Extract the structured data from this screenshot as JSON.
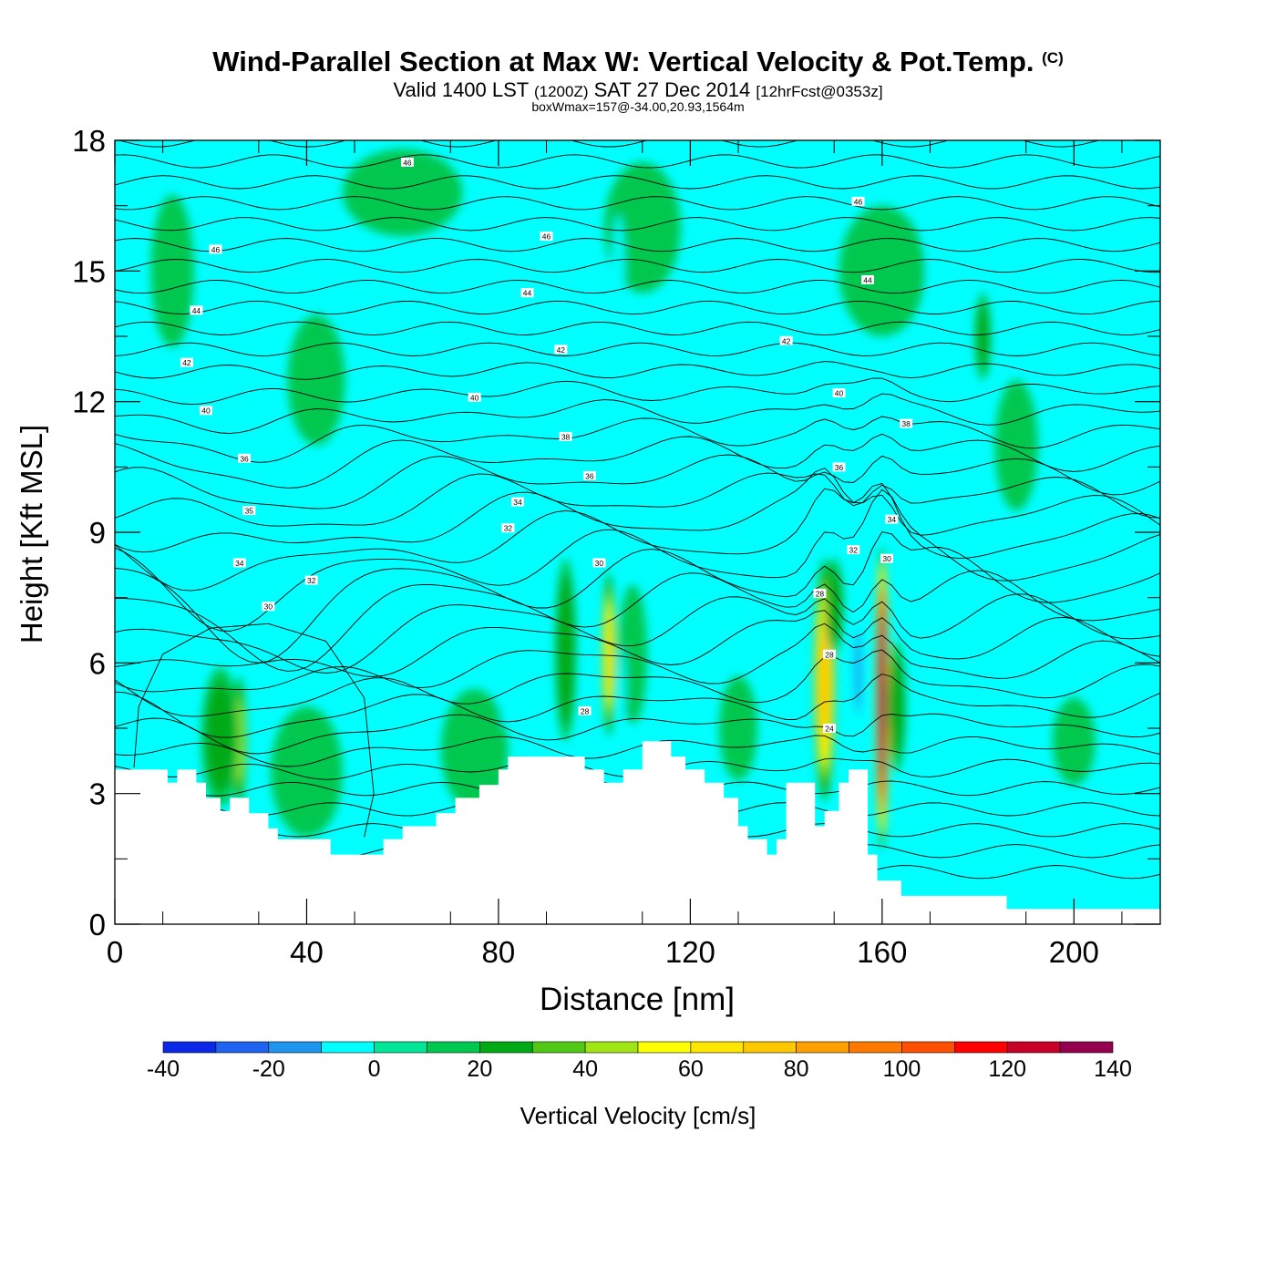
{
  "header": {
    "title": "Wind-Parallel Section at Max W: Vertical Velocity & Pot.Temp.",
    "copyright": "(C)",
    "subtitle_a": "Valid 1400 LST",
    "subtitle_b": "(1200Z)",
    "subtitle_c": "SAT 27 Dec 2014",
    "subtitle_d": "[12hrFcst@0353z]",
    "subtitle2": "boxWmax=157@-34.00,20.93,1564m"
  },
  "chart_data": {
    "type": "heatmap",
    "xlabel": "Distance [nm]",
    "ylabel": "Height [Kft MSL]",
    "xlim": [
      0,
      218
    ],
    "ylim": [
      0,
      18
    ],
    "xticks": [
      "0",
      "40",
      "80",
      "120",
      "160",
      "200"
    ],
    "xtick_values": [
      0,
      40,
      80,
      120,
      160,
      200
    ],
    "yticks": [
      "0",
      "3",
      "6",
      "9",
      "12",
      "15",
      "18"
    ],
    "ytick_values": [
      0,
      3,
      6,
      9,
      12,
      15,
      18
    ],
    "colorbar": {
      "label": "Vertical Velocity [cm/s]",
      "ticks": [
        "-40",
        "-20",
        "0",
        "20",
        "40",
        "60",
        "80",
        "100",
        "120",
        "140"
      ],
      "tick_values": [
        -40,
        -20,
        0,
        20,
        40,
        60,
        80,
        100,
        120,
        140
      ],
      "levels": [
        -40,
        -30,
        -20,
        -10,
        0,
        10,
        20,
        30,
        40,
        50,
        60,
        70,
        80,
        90,
        100,
        110,
        120,
        130,
        140
      ],
      "colors": [
        "#0a28e6",
        "#1e64f0",
        "#1e96f0",
        "#00ffff",
        "#00e696",
        "#00c850",
        "#00aa14",
        "#50c814",
        "#a0e614",
        "#ffff00",
        "#ffe600",
        "#ffc800",
        "#ffa000",
        "#ff7800",
        "#ff5000",
        "#ff0000",
        "#c80028",
        "#960050"
      ]
    },
    "terrain": [
      [
        0,
        3.55
      ],
      [
        11,
        3.55
      ],
      [
        11,
        3.25
      ],
      [
        13,
        3.25
      ],
      [
        13,
        3.55
      ],
      [
        17,
        3.55
      ],
      [
        17,
        3.25
      ],
      [
        19,
        3.25
      ],
      [
        19,
        2.9
      ],
      [
        22,
        2.9
      ],
      [
        22,
        2.6
      ],
      [
        24,
        2.6
      ],
      [
        24,
        2.9
      ],
      [
        28,
        2.9
      ],
      [
        28,
        2.55
      ],
      [
        32,
        2.55
      ],
      [
        32,
        2.2
      ],
      [
        34,
        2.2
      ],
      [
        34,
        1.95
      ],
      [
        45,
        1.95
      ],
      [
        45,
        1.6
      ],
      [
        56,
        1.6
      ],
      [
        56,
        1.95
      ],
      [
        60,
        1.95
      ],
      [
        60,
        2.25
      ],
      [
        67,
        2.25
      ],
      [
        67,
        2.55
      ],
      [
        71,
        2.55
      ],
      [
        71,
        2.9
      ],
      [
        76,
        2.9
      ],
      [
        76,
        3.2
      ],
      [
        80,
        3.2
      ],
      [
        80,
        3.55
      ],
      [
        82,
        3.55
      ],
      [
        82,
        3.85
      ],
      [
        98,
        3.85
      ],
      [
        98,
        3.55
      ],
      [
        102,
        3.55
      ],
      [
        102,
        3.25
      ],
      [
        106,
        3.25
      ],
      [
        106,
        3.55
      ],
      [
        110,
        3.55
      ],
      [
        110,
        4.2
      ],
      [
        116,
        4.2
      ],
      [
        116,
        3.85
      ],
      [
        119,
        3.85
      ],
      [
        119,
        3.55
      ],
      [
        123,
        3.55
      ],
      [
        123,
        3.25
      ],
      [
        127,
        3.25
      ],
      [
        127,
        2.9
      ],
      [
        130,
        2.9
      ],
      [
        130,
        2.25
      ],
      [
        132,
        2.25
      ],
      [
        132,
        1.95
      ],
      [
        136,
        1.95
      ],
      [
        136,
        1.6
      ],
      [
        138,
        1.6
      ],
      [
        138,
        1.95
      ],
      [
        140,
        1.95
      ],
      [
        140,
        3.25
      ],
      [
        146,
        3.25
      ],
      [
        146,
        2.25
      ],
      [
        148,
        2.25
      ],
      [
        148,
        2.6
      ],
      [
        151,
        2.6
      ],
      [
        151,
        3.25
      ],
      [
        153,
        3.25
      ],
      [
        153,
        3.55
      ],
      [
        157,
        3.55
      ],
      [
        157,
        1.6
      ],
      [
        159,
        1.6
      ],
      [
        159,
        1.0
      ],
      [
        164,
        1.0
      ],
      [
        164,
        0.65
      ],
      [
        186,
        0.65
      ],
      [
        186,
        0.35
      ],
      [
        218,
        0.35
      ]
    ],
    "wcells": [
      {
        "x": 160,
        "z": 5.2,
        "w": 2.8,
        "h": 7.0,
        "v": 150
      },
      {
        "x": 148,
        "z": 5.6,
        "w": 4.5,
        "h": 5.6,
        "v": 70
      },
      {
        "x": 103,
        "z": 6.2,
        "w": 2.8,
        "h": 3.8,
        "v": 60
      },
      {
        "x": 94,
        "z": 6.3,
        "w": 4.5,
        "h": 4.2,
        "v": 28
      },
      {
        "x": 26,
        "z": 4.2,
        "w": 3.0,
        "h": 3.0,
        "v": 42
      },
      {
        "x": 22,
        "z": 4.3,
        "w": 8.0,
        "h": 3.2,
        "v": 24
      },
      {
        "x": 150,
        "z": 7.3,
        "w": 4.0,
        "h": 2.2,
        "v": 22
      },
      {
        "x": 163,
        "z": 5.0,
        "w": 4.0,
        "h": 3.0,
        "v": 22
      },
      {
        "x": 108,
        "z": 6.2,
        "w": 6.0,
        "h": 3.2,
        "v": 15
      },
      {
        "x": 130,
        "z": 4.5,
        "w": 8.0,
        "h": 2.4,
        "v": 14
      },
      {
        "x": 40,
        "z": 3.5,
        "w": 15.0,
        "h": 3.0,
        "v": 10
      },
      {
        "x": 75,
        "z": 4.0,
        "w": 14.0,
        "h": 2.8,
        "v": 10
      },
      {
        "x": 12,
        "z": 15.0,
        "w": 9.0,
        "h": 3.5,
        "v": 10
      },
      {
        "x": 60,
        "z": 16.8,
        "w": 25.0,
        "h": 2.0,
        "v": 10
      },
      {
        "x": 42,
        "z": 12.5,
        "w": 12.0,
        "h": 3.0,
        "v": 10
      },
      {
        "x": 110,
        "z": 16.0,
        "w": 16.0,
        "h": 3.0,
        "v": 10
      },
      {
        "x": 160,
        "z": 15.0,
        "w": 18.0,
        "h": 3.0,
        "v": 10
      },
      {
        "x": 181,
        "z": 13.5,
        "w": 3.5,
        "h": 2.0,
        "v": 20
      },
      {
        "x": 200,
        "z": 4.2,
        "w": 9.0,
        "h": 2.0,
        "v": 10
      },
      {
        "x": 188,
        "z": 11.0,
        "w": 9.0,
        "h": 3.0,
        "v": 10
      },
      {
        "x": 105,
        "z": 15.0,
        "w": 2.6,
        "h": 2.6,
        "v": -18
      },
      {
        "x": 93,
        "z": 14.0,
        "w": 1.5,
        "h": 2.6,
        "v": -15
      },
      {
        "x": 155,
        "z": 5.8,
        "w": 1.7,
        "h": 2.5,
        "v": -25
      },
      {
        "x": 137,
        "z": 3.5,
        "w": 1.4,
        "h": 1.4,
        "v": -18
      },
      {
        "x": 81,
        "z": 5.2,
        "w": 1.0,
        "h": 1.4,
        "v": -14
      },
      {
        "x": 57,
        "z": 5.2,
        "w": 0.9,
        "h": 1.6,
        "v": -14
      },
      {
        "x": 144,
        "z": 12.5,
        "w": 1.5,
        "h": 2.3,
        "v": -14
      },
      {
        "x": 170,
        "z": 15.5,
        "w": 1.0,
        "h": 2.4,
        "v": -14
      },
      {
        "x": 168,
        "z": 17.8,
        "w": 0.8,
        "h": 1.0,
        "v": -12
      },
      {
        "x": 138,
        "z": 17.8,
        "w": 0.7,
        "h": 0.7,
        "v": -12
      },
      {
        "x": 106,
        "z": 5.5,
        "w": 0.7,
        "h": 1.8,
        "v": -12
      }
    ],
    "theta_labels": [
      {
        "x": 61,
        "z": 17.5,
        "text": "46"
      },
      {
        "x": 90,
        "z": 15.8,
        "text": "46"
      },
      {
        "x": 21,
        "z": 15.5,
        "text": "46"
      },
      {
        "x": 155,
        "z": 16.6,
        "text": "46"
      },
      {
        "x": 17,
        "z": 14.1,
        "text": "44"
      },
      {
        "x": 86,
        "z": 14.5,
        "text": "44"
      },
      {
        "x": 157,
        "z": 14.8,
        "text": "44"
      },
      {
        "x": 15,
        "z": 12.9,
        "text": "42"
      },
      {
        "x": 93,
        "z": 13.2,
        "text": "42"
      },
      {
        "x": 140,
        "z": 13.4,
        "text": "42"
      },
      {
        "x": 19,
        "z": 11.8,
        "text": "40"
      },
      {
        "x": 75,
        "z": 12.1,
        "text": "40"
      },
      {
        "x": 151,
        "z": 12.2,
        "text": "40"
      },
      {
        "x": 94,
        "z": 11.2,
        "text": "38"
      },
      {
        "x": 165,
        "z": 11.5,
        "text": "38"
      },
      {
        "x": 27,
        "z": 10.7,
        "text": "36"
      },
      {
        "x": 99,
        "z": 10.3,
        "text": "36"
      },
      {
        "x": 151,
        "z": 10.5,
        "text": "36"
      },
      {
        "x": 28,
        "z": 9.5,
        "text": "35"
      },
      {
        "x": 84,
        "z": 9.7,
        "text": "34"
      },
      {
        "x": 162,
        "z": 9.3,
        "text": "34"
      },
      {
        "x": 82,
        "z": 9.1,
        "text": "32"
      },
      {
        "x": 154,
        "z": 8.6,
        "text": "32"
      },
      {
        "x": 26,
        "z": 8.3,
        "text": "34"
      },
      {
        "x": 41,
        "z": 7.9,
        "text": "32"
      },
      {
        "x": 101,
        "z": 8.3,
        "text": "30"
      },
      {
        "x": 161,
        "z": 8.4,
        "text": "30"
      },
      {
        "x": 32,
        "z": 7.3,
        "text": "30"
      },
      {
        "x": 147,
        "z": 7.6,
        "text": "28"
      },
      {
        "x": 149,
        "z": 6.2,
        "text": "28"
      },
      {
        "x": 98,
        "z": 4.9,
        "text": "28"
      },
      {
        "x": 149,
        "z": 4.5,
        "text": "24"
      }
    ]
  }
}
